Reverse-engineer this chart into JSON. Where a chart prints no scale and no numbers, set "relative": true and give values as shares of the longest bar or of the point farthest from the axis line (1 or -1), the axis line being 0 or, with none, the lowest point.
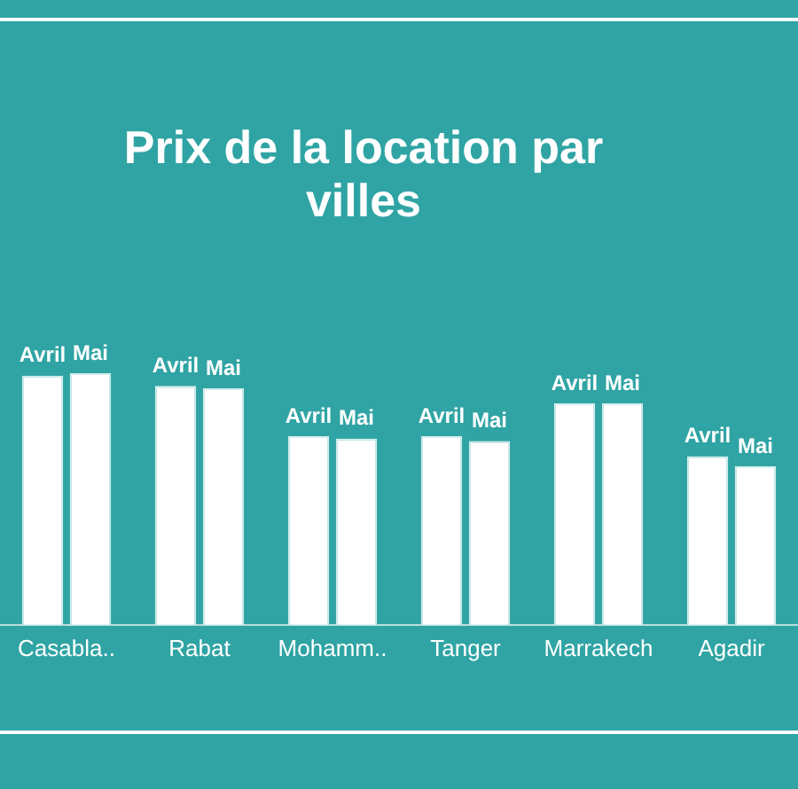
{
  "chart_data": {
    "type": "bar",
    "title": "Prix de la location par villes",
    "relative": true,
    "categories": [
      "Casabla..",
      "Rabat",
      "Mohamm..",
      "Tanger",
      "Marrakech",
      "Agadir"
    ],
    "series": [
      {
        "name": "Avril",
        "color": "#ffffff",
        "values": [
          0.99,
          0.95,
          0.75,
          0.75,
          0.88,
          0.67
        ]
      },
      {
        "name": "Mai",
        "color": "#ffffff",
        "values": [
          1,
          0.94,
          0.74,
          0.73,
          0.88,
          0.63
        ]
      }
    ],
    "grid": false,
    "legend": false
  }
}
